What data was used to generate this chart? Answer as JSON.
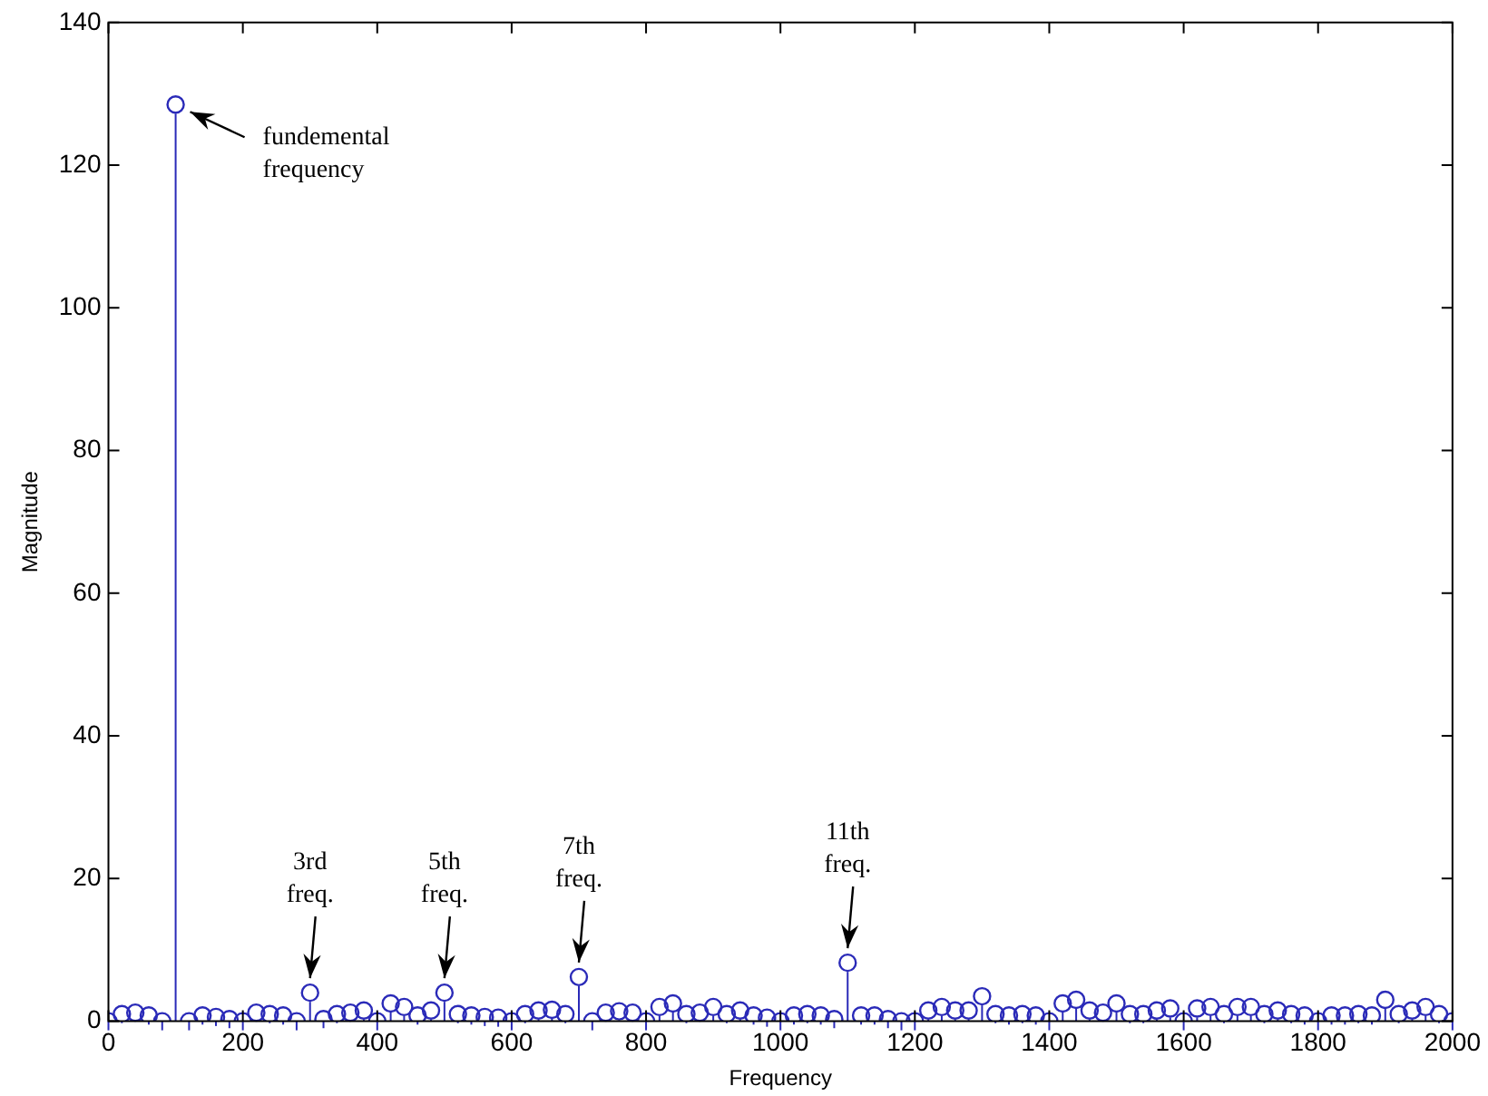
{
  "chart_data": {
    "type": "lollipop",
    "xlabel": "Frequency",
    "ylabel": "Magnitude",
    "x": [
      0,
      20,
      40,
      60,
      80,
      100,
      120,
      140,
      160,
      180,
      200,
      220,
      240,
      260,
      280,
      300,
      320,
      340,
      360,
      380,
      400,
      420,
      440,
      460,
      480,
      500,
      520,
      540,
      560,
      580,
      600,
      620,
      640,
      660,
      680,
      700,
      720,
      740,
      760,
      780,
      800,
      820,
      840,
      860,
      880,
      900,
      920,
      940,
      960,
      980,
      1000,
      1020,
      1040,
      1060,
      1080,
      1100,
      1120,
      1140,
      1160,
      1180,
      1200,
      1220,
      1240,
      1260,
      1280,
      1300,
      1320,
      1340,
      1360,
      1380,
      1400,
      1420,
      1440,
      1460,
      1480,
      1500,
      1520,
      1540,
      1560,
      1580,
      1600,
      1620,
      1640,
      1660,
      1680,
      1700,
      1720,
      1740,
      1760,
      1780,
      1800,
      1820,
      1840,
      1860,
      1880,
      1900,
      1920,
      1940,
      1960,
      1980,
      2000
    ],
    "values": [
      0,
      1,
      1.2,
      0.8,
      0,
      128.5,
      0,
      0.8,
      0.6,
      0.3,
      0,
      1.2,
      1,
      0.8,
      0,
      4,
      0.3,
      1,
      1.2,
      1.5,
      0,
      2.5,
      2,
      0.8,
      1.5,
      4,
      1,
      0.8,
      0.6,
      0.5,
      0,
      1,
      1.5,
      1.6,
      1,
      6.2,
      0,
      1.2,
      1.4,
      1.2,
      0,
      2,
      2.5,
      1,
      1.2,
      2,
      1,
      1.5,
      0.8,
      0.5,
      0,
      0.8,
      1,
      0.8,
      0.3,
      8.2,
      0.8,
      0.8,
      0.3,
      0,
      0,
      1.5,
      2,
      1.5,
      1.5,
      3.5,
      1,
      0.8,
      1,
      0.8,
      0,
      2.5,
      3,
      1.5,
      1.2,
      2.5,
      1,
      1,
      1.5,
      1.8,
      0,
      1.8,
      2,
      1,
      2,
      2,
      1,
      1.5,
      1,
      0.8,
      0,
      0.8,
      0.8,
      1,
      0.8,
      3,
      1,
      1.5,
      2,
      1,
      0
    ],
    "color": "#2a2ab8",
    "marker": "circle",
    "grid": false,
    "xlim": [
      0,
      2000
    ],
    "xticks": [
      0,
      200,
      400,
      600,
      800,
      1000,
      1200,
      1400,
      1600,
      1800,
      2000
    ],
    "ylim": [
      0,
      140
    ],
    "yticks": [
      0,
      20,
      40,
      60,
      80,
      100,
      120,
      140
    ],
    "annotations": [
      {
        "text": "fundemental\nfrequency",
        "x": 100,
        "y": 128.5
      },
      {
        "text": "3rd\nfreq.",
        "x": 300,
        "y": 4
      },
      {
        "text": "5th\nfreq.",
        "x": 500,
        "y": 4
      },
      {
        "text": "7th\nfreq.",
        "x": 700,
        "y": 6.2
      },
      {
        "text": "11th\nfreq.",
        "x": 1100,
        "y": 8.2
      }
    ]
  }
}
